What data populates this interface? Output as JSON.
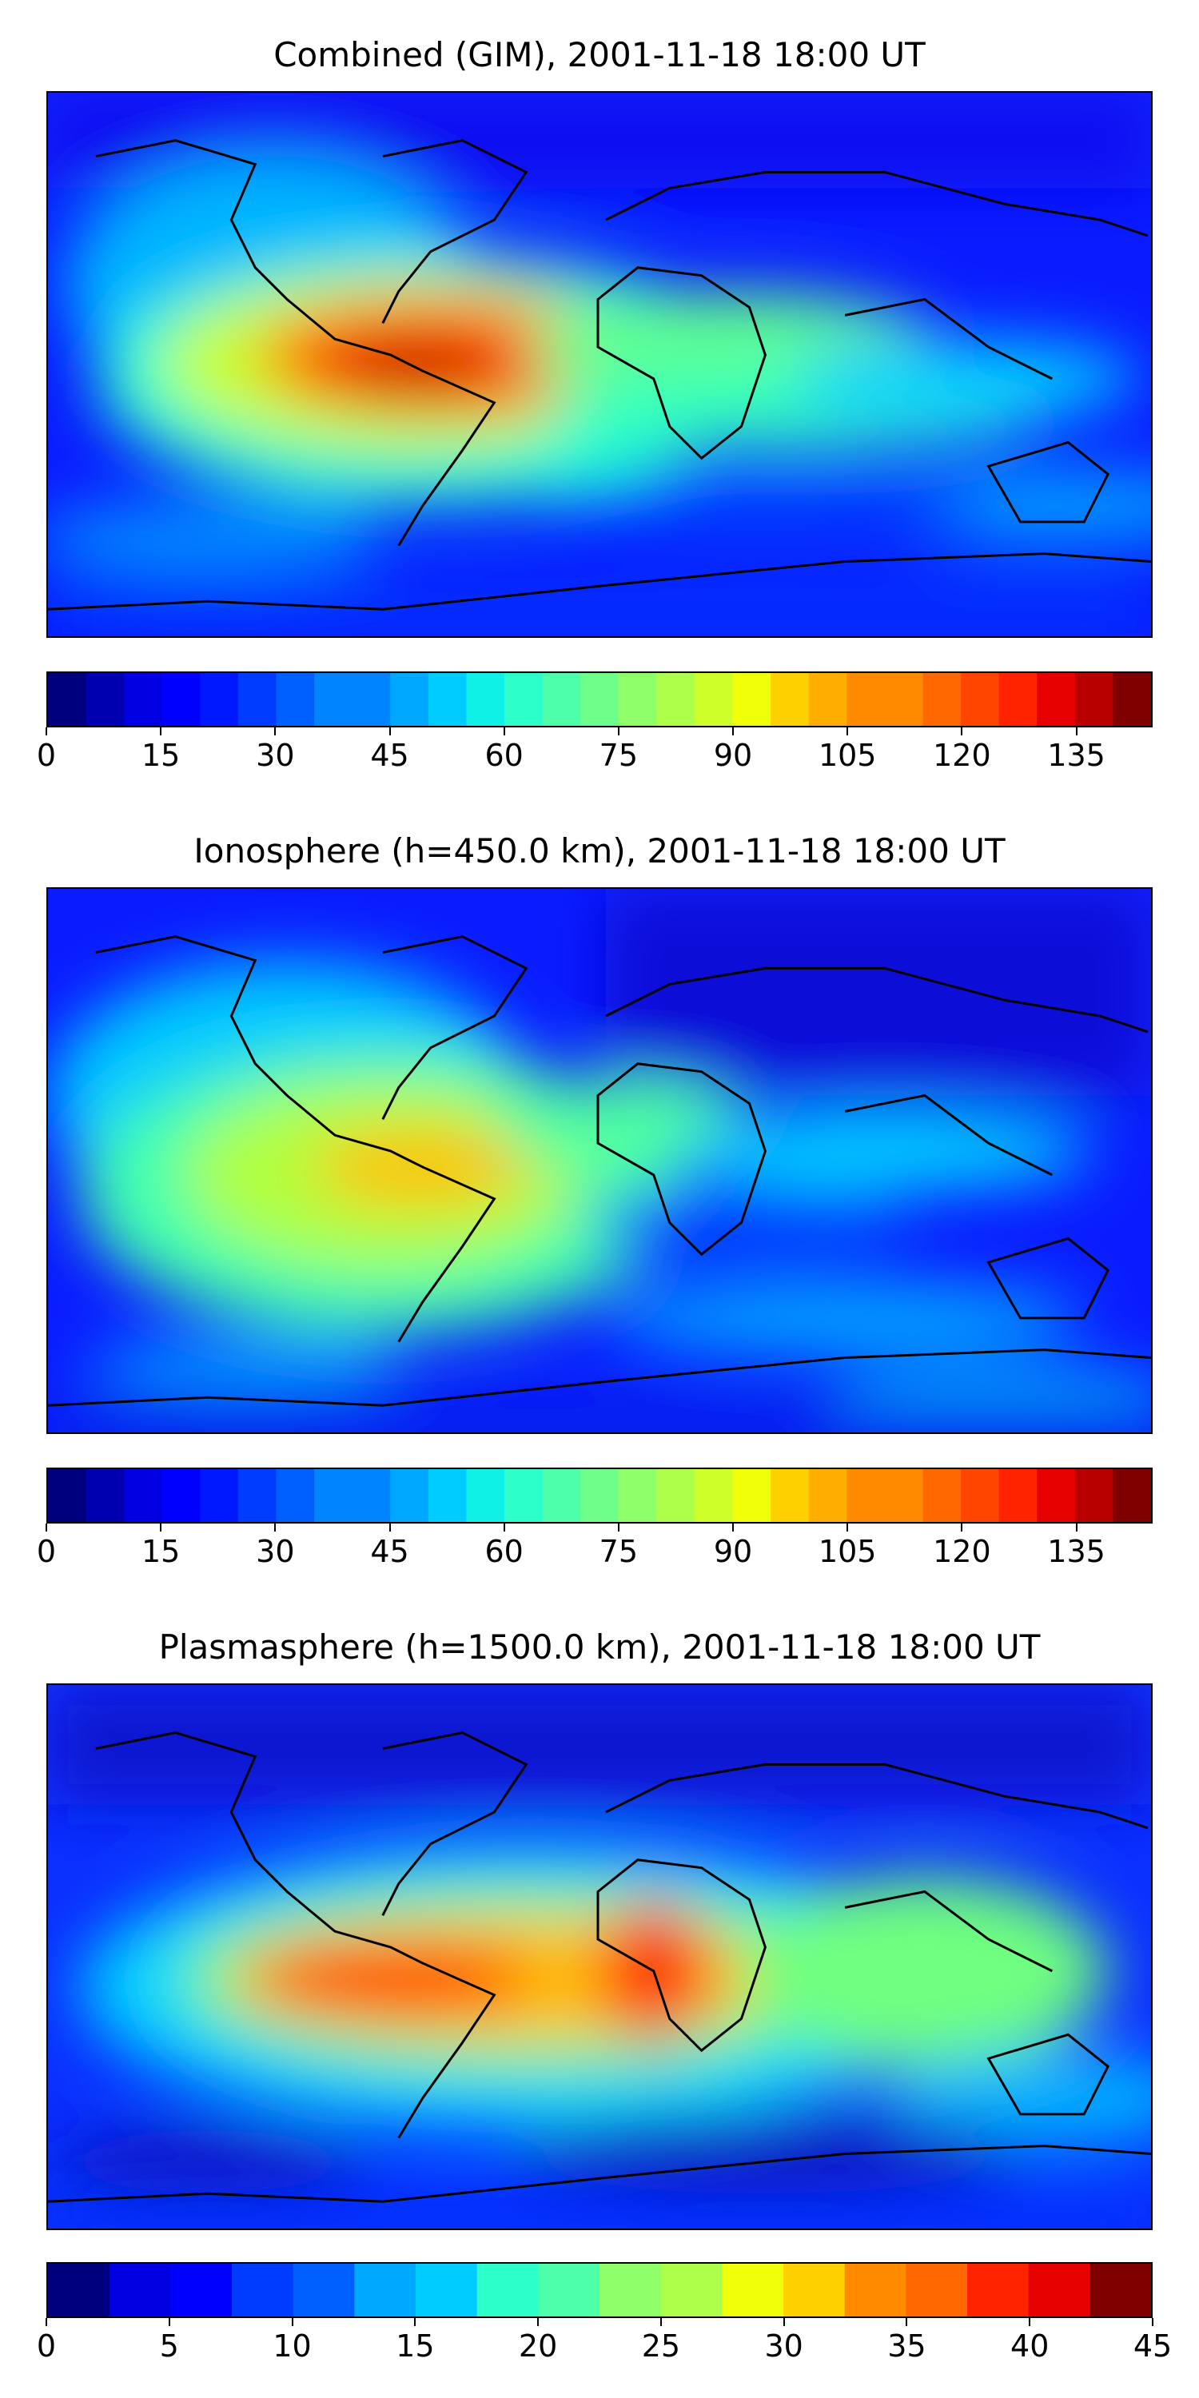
{
  "colorbar_colors": [
    "#00007f",
    "#0000b0",
    "#0000e2",
    "#0000ff",
    "#0018ff",
    "#003cff",
    "#0060ff",
    "#0084ff",
    "#00a8ff",
    "#00ccff",
    "#0ff0e6",
    "#2cffca",
    "#4dffa9",
    "#6dff8a",
    "#8eff69",
    "#aeff49",
    "#cfff28",
    "#efff08",
    "#ffd000",
    "#ffae00",
    "#ff8a00",
    "#ff6800",
    "#ff4500",
    "#ff2300",
    "#e60000",
    "#b80000",
    "#800000"
  ],
  "panels": [
    {
      "title": "Combined (GIM), 2001-11-18 18:00 UT",
      "colorbar": {
        "min": 0,
        "max": 145,
        "ticks": [
          "0",
          "15",
          "30",
          "45",
          "60",
          "75",
          "90",
          "105",
          "120",
          "135"
        ],
        "tick_values": [
          0,
          15,
          30,
          45,
          60,
          75,
          90,
          105,
          120,
          135
        ]
      }
    },
    {
      "title": "Ionosphere  (h=450.0 km), 2001-11-18 18:00 UT",
      "colorbar": {
        "min": 0,
        "max": 145,
        "ticks": [
          "0",
          "15",
          "30",
          "45",
          "60",
          "75",
          "90",
          "105",
          "120",
          "135"
        ],
        "tick_values": [
          0,
          15,
          30,
          45,
          60,
          75,
          90,
          105,
          120,
          135
        ]
      }
    },
    {
      "title": "Plasmasphere (h=1500.0 km), 2001-11-18 18:00 UT",
      "colorbar": {
        "min": 0,
        "max": 45,
        "ticks": [
          "0",
          "5",
          "10",
          "15",
          "20",
          "25",
          "30",
          "35",
          "40",
          "45"
        ],
        "tick_values": [
          0,
          5,
          10,
          15,
          20,
          25,
          30,
          35,
          40,
          45
        ]
      }
    }
  ]
}
